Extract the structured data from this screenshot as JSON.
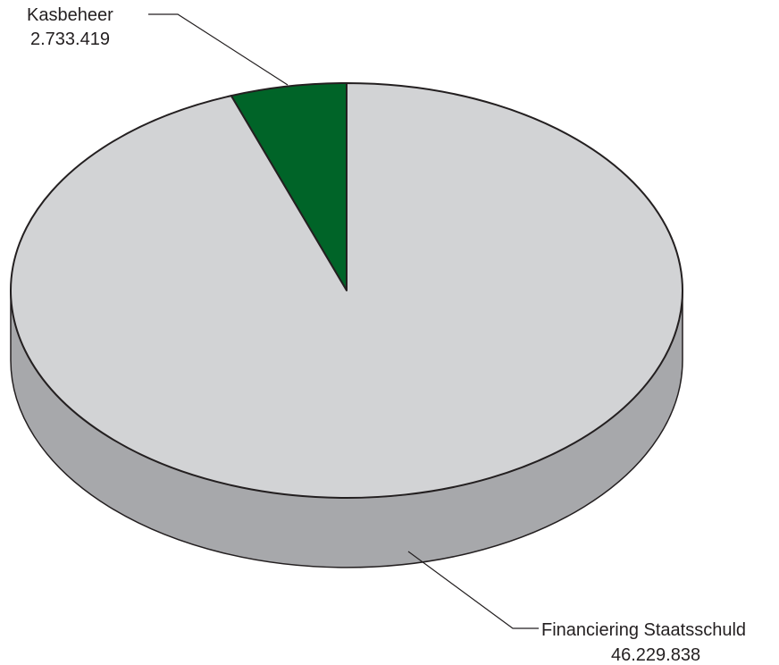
{
  "chart_data": {
    "type": "pie",
    "style": "3d",
    "title": "",
    "slices": [
      {
        "name": "Kasbeheer",
        "value_label": "2.733.419",
        "value": 2733419,
        "color": "#006428"
      },
      {
        "name": "Financiering Staatsschuld",
        "value_label": "46.229.838",
        "value": 46229838,
        "color": "#d2d3d5"
      }
    ],
    "side_color": "#a7a8ab",
    "outline_color": "#231f20",
    "legend": "none"
  }
}
